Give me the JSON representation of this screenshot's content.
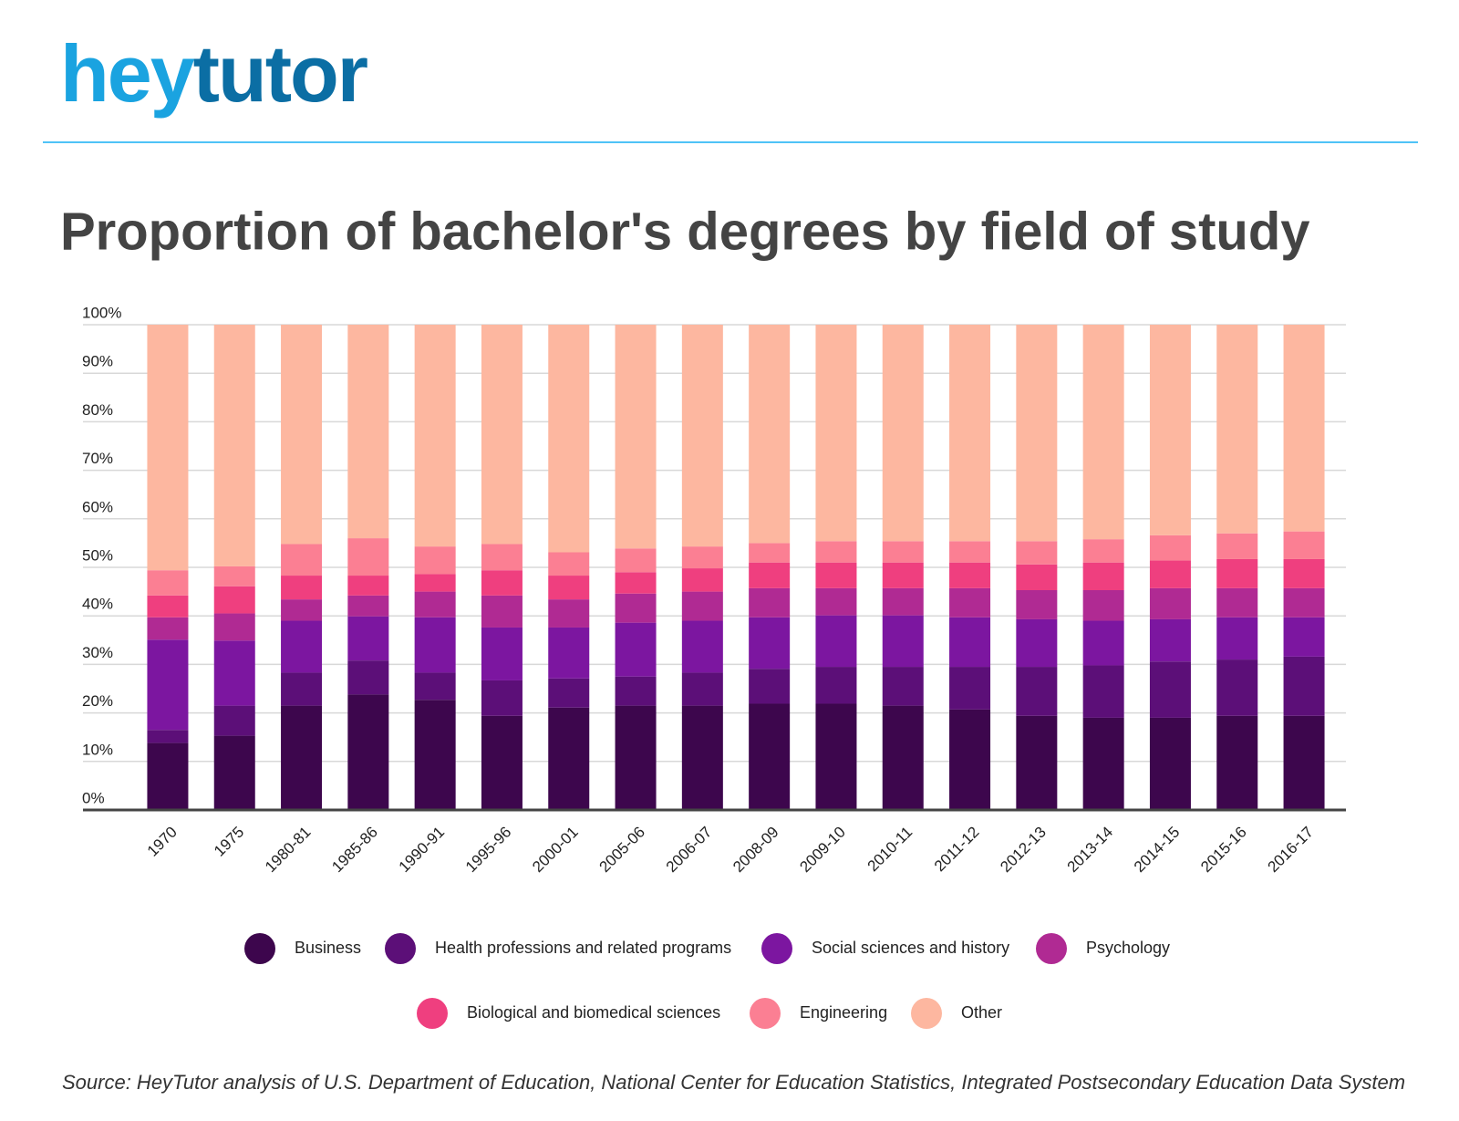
{
  "header": {
    "logo_part1": "hey",
    "logo_part2": "tutor"
  },
  "chart_data": {
    "type": "stacked_bar",
    "title": "Proportion of bachelor's degrees by field of study",
    "source": "Source: HeyTutor analysis of U.S. Department of Education, National Center for Education Statistics, Integrated Postsecondary Education Data System",
    "categories": [
      "1970",
      "1975",
      "1980-81",
      "1985-86",
      "1990-91",
      "1995-96",
      "2000-01",
      "2005-06",
      "2006-07",
      "2008-09",
      "2009-10",
      "2010-11",
      "2011-12",
      "2012-13",
      "2013-14",
      "2014-15",
      "2015-16",
      "2016-17"
    ],
    "series": [
      {
        "name": "Business",
        "color": "#3d064d",
        "values": [
          13.8,
          15.3,
          21.5,
          23.8,
          22.7,
          19.4,
          21.1,
          21.5,
          21.5,
          21.9,
          21.9,
          21.5,
          20.7,
          19.4,
          19.0,
          19.0,
          19.4,
          19.4
        ]
      },
      {
        "name": "Health professions and related programs",
        "color": "#5c0f78",
        "values": [
          2.7,
          6.2,
          6.8,
          7.0,
          5.6,
          7.3,
          6.0,
          6.0,
          6.8,
          7.2,
          7.6,
          8.0,
          8.8,
          10.1,
          10.8,
          11.6,
          11.6,
          12.2
        ]
      },
      {
        "name": "Social sciences and history",
        "color": "#7c16a0",
        "values": [
          18.6,
          13.4,
          10.7,
          9.1,
          11.4,
          10.9,
          10.5,
          11.1,
          10.7,
          10.6,
          10.6,
          10.6,
          10.2,
          9.8,
          9.2,
          8.7,
          8.7,
          8.1
        ]
      },
      {
        "name": "Psychology",
        "color": "#b02a93",
        "values": [
          4.6,
          5.6,
          4.4,
          4.3,
          5.3,
          6.6,
          5.8,
          6.0,
          6.0,
          6.0,
          5.6,
          5.6,
          6.0,
          6.0,
          6.3,
          6.4,
          6.0,
          6.0
        ]
      },
      {
        "name": "Biological and biomedical sciences",
        "color": "#ef3f7f",
        "values": [
          4.5,
          5.6,
          4.9,
          4.1,
          3.6,
          5.2,
          4.9,
          4.4,
          4.8,
          5.3,
          5.3,
          5.3,
          5.3,
          5.3,
          5.7,
          5.7,
          6.0,
          6.0
        ]
      },
      {
        "name": "Engineering",
        "color": "#fb7f93",
        "values": [
          5.2,
          4.1,
          6.5,
          7.7,
          5.7,
          5.4,
          4.8,
          4.9,
          4.5,
          4.0,
          4.4,
          4.4,
          4.4,
          4.8,
          4.8,
          5.2,
          5.3,
          5.7
        ]
      },
      {
        "name": "Other",
        "color": "#fdb7a0",
        "values": [
          50.6,
          49.8,
          45.2,
          44.0,
          45.7,
          45.2,
          46.9,
          46.1,
          45.7,
          45.0,
          44.6,
          44.6,
          44.6,
          44.6,
          44.2,
          43.4,
          43.0,
          42.6
        ]
      }
    ],
    "ylim": [
      0,
      100
    ],
    "yticks": [
      {
        "value": 0,
        "label": "0%"
      },
      {
        "value": 10,
        "label": "10%"
      },
      {
        "value": 20,
        "label": "20%"
      },
      {
        "value": 30,
        "label": "30%"
      },
      {
        "value": 40,
        "label": "40%"
      },
      {
        "value": 50,
        "label": "50%"
      },
      {
        "value": 60,
        "label": "60%"
      },
      {
        "value": 70,
        "label": "70%"
      },
      {
        "value": 80,
        "label": "80%"
      },
      {
        "value": 90,
        "label": "90%"
      },
      {
        "value": 100,
        "label": "100%"
      }
    ],
    "grid": true
  }
}
